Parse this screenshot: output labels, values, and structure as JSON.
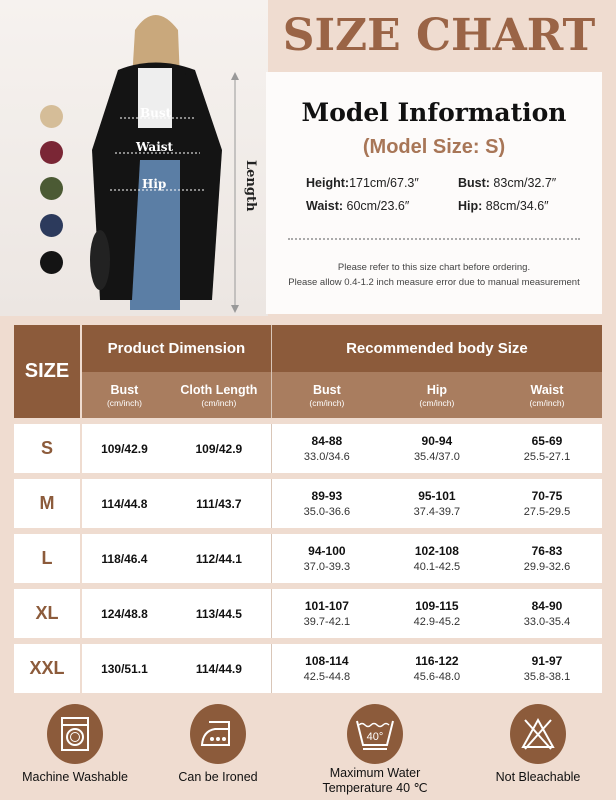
{
  "title": "SIZE CHART",
  "photo": {
    "labels": {
      "bust": "Bust",
      "waist": "Waist",
      "hip": "Hip",
      "length": "Length"
    }
  },
  "swatches": [
    "#d5bd98",
    "#7a2635",
    "#4b5a34",
    "#2c3a5c",
    "#141414"
  ],
  "model": {
    "heading": "Model Information",
    "size": "(Model Size: S)",
    "height_label": "Height:",
    "height": "171cm/67.3″",
    "bust_label": "Bust:",
    "bust": " 83cm/32.7″",
    "waist_label": "Waist:",
    "waist": " 60cm/23.6″",
    "hip_label": "Hip:",
    "hip": " 88cm/34.6″",
    "note1": "Please refer to this size chart before ordering.",
    "note2": "Please allow 0.4-1.2 inch measure error due to manual measurement"
  },
  "table": {
    "size_header": "SIZE",
    "group1": "Product Dimension",
    "group2": "Recommended body Size",
    "unit": "(cm/inch)",
    "columns": [
      "Bust",
      "Cloth Length",
      "Bust",
      "Hip",
      "Waist"
    ],
    "rows": [
      {
        "size": "S",
        "bust": "109/42.9",
        "length": "109/42.9",
        "body_bust": [
          "84-88",
          "33.0/34.6"
        ],
        "hip": [
          "90-94",
          "35.4/37.0"
        ],
        "waist": [
          "65-69",
          "25.5-27.1"
        ]
      },
      {
        "size": "M",
        "bust": "114/44.8",
        "length": "111/43.7",
        "body_bust": [
          "89-93",
          "35.0-36.6"
        ],
        "hip": [
          "95-101",
          "37.4-39.7"
        ],
        "waist": [
          "70-75",
          "27.5-29.5"
        ]
      },
      {
        "size": "L",
        "bust": "118/46.4",
        "length": "112/44.1",
        "body_bust": [
          "94-100",
          "37.0-39.3"
        ],
        "hip": [
          "102-108",
          "40.1-42.5"
        ],
        "waist": [
          "76-83",
          "29.9-32.6"
        ]
      },
      {
        "size": "XL",
        "bust": "124/48.8",
        "length": "113/44.5",
        "body_bust": [
          "101-107",
          "39.7-42.1"
        ],
        "hip": [
          "109-115",
          "42.9-45.2"
        ],
        "waist": [
          "84-90",
          "33.0-35.4"
        ]
      },
      {
        "size": "XXL",
        "bust": "130/51.1",
        "length": "114/44.9",
        "body_bust": [
          "108-114",
          "42.5-44.8"
        ],
        "hip": [
          "116-122",
          "45.6-48.0"
        ],
        "waist": [
          "91-97",
          "35.8-38.1"
        ]
      }
    ]
  },
  "care": [
    {
      "icon": "washing-machine-icon",
      "label": "Machine Washable"
    },
    {
      "icon": "iron-icon",
      "label": "Can be Ironed"
    },
    {
      "icon": "wash-40-icon",
      "label": "Maximum Water Temperature 40 ℃",
      "badge": "40°"
    },
    {
      "icon": "no-bleach-icon",
      "label": "Not Bleachable"
    }
  ]
}
